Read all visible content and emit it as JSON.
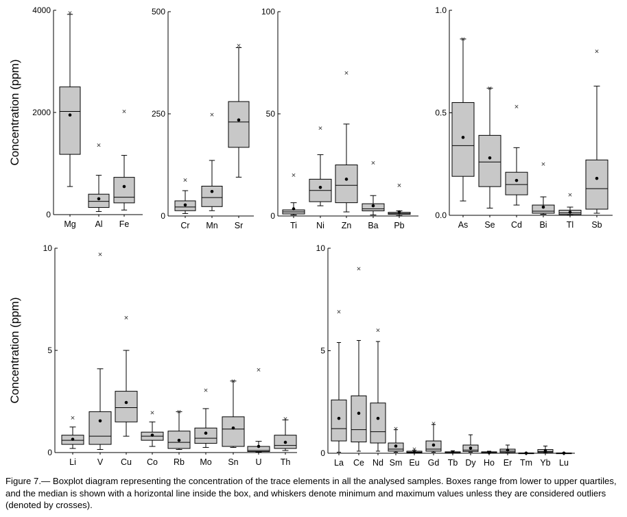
{
  "caption": "Figure 7.— Boxplot diagram representing the concentration of the trace elements in all the analysed samples. Boxes range from lower to upper quartiles, and the median is shown with a horizontal line inside the box, and whiskers denote minimum and maximum values unless they are considered outliers (denoted by crosses).",
  "box_fill": "#c8c8c8",
  "chart_data": [
    {
      "type": "boxplot",
      "ylabel": "Concentration (ppm)",
      "ylim": [
        0,
        4000
      ],
      "yticks": [
        0,
        2000,
        4000
      ],
      "boxes": [
        {
          "label": "Mg",
          "min": 550,
          "q1": 1180,
          "median": 2020,
          "q3": 2500,
          "max": 3920,
          "mean": 1950,
          "outliers": [
            3950
          ]
        },
        {
          "label": "Al",
          "min": 60,
          "q1": 140,
          "median": 260,
          "q3": 400,
          "max": 770,
          "mean": 310,
          "outliers": [
            1360
          ]
        },
        {
          "label": "Fe",
          "min": 90,
          "q1": 230,
          "median": 340,
          "q3": 730,
          "max": 1160,
          "mean": 550,
          "outliers": [
            2020
          ]
        }
      ]
    },
    {
      "type": "boxplot",
      "ylabel": "",
      "ylim": [
        0,
        500
      ],
      "yticks": [
        0,
        250,
        500
      ],
      "boxes": [
        {
          "label": "Cr",
          "min": 6,
          "q1": 13,
          "median": 22,
          "q3": 37,
          "max": 62,
          "mean": 27,
          "outliers": [
            88
          ]
        },
        {
          "label": "Mn",
          "min": 13,
          "q1": 23,
          "median": 45,
          "q3": 73,
          "max": 136,
          "mean": 60,
          "outliers": [
            248
          ]
        },
        {
          "label": "Sr",
          "min": 95,
          "q1": 168,
          "median": 230,
          "q3": 280,
          "max": 412,
          "mean": 235,
          "outliers": [
            417
          ]
        }
      ]
    },
    {
      "type": "boxplot",
      "ylabel": "",
      "ylim": [
        0,
        100
      ],
      "yticks": [
        0,
        50,
        100
      ],
      "boxes": [
        {
          "label": "Ti",
          "min": 0.5,
          "q1": 1,
          "median": 2,
          "q3": 3,
          "max": 6.5,
          "mean": 3.5,
          "outliers": [
            20
          ]
        },
        {
          "label": "Ni",
          "min": 5,
          "q1": 7,
          "median": 12.5,
          "q3": 18,
          "max": 30,
          "mean": 14,
          "outliers": [
            43
          ]
        },
        {
          "label": "Zn",
          "min": 2,
          "q1": 6.5,
          "median": 15,
          "q3": 25,
          "max": 45,
          "mean": 18,
          "outliers": [
            70
          ]
        },
        {
          "label": "Ba",
          "min": 0.5,
          "q1": 2.5,
          "median": 3.5,
          "q3": 6,
          "max": 10,
          "mean": 5,
          "outliers": [
            26
          ]
        },
        {
          "label": "Pb",
          "min": 0.2,
          "q1": 0.8,
          "median": 1.2,
          "q3": 1.8,
          "max": 2.5,
          "mean": 2,
          "outliers": [
            15
          ]
        }
      ]
    },
    {
      "type": "boxplot",
      "ylabel": "",
      "ylim": [
        0,
        1.0
      ],
      "yticks": [
        0.0,
        0.5,
        1.0
      ],
      "boxes": [
        {
          "label": "As",
          "min": 0.07,
          "q1": 0.19,
          "median": 0.34,
          "q3": 0.55,
          "max": 0.86,
          "mean": 0.38,
          "outliers": [
            0.86
          ]
        },
        {
          "label": "Se",
          "min": 0.035,
          "q1": 0.14,
          "median": 0.26,
          "q3": 0.39,
          "max": 0.62,
          "mean": 0.28,
          "outliers": [
            0.62
          ]
        },
        {
          "label": "Cd",
          "min": 0.05,
          "q1": 0.1,
          "median": 0.15,
          "q3": 0.21,
          "max": 0.33,
          "mean": 0.17,
          "outliers": [
            0.53
          ]
        },
        {
          "label": "Bi",
          "min": 0.005,
          "q1": 0.01,
          "median": 0.02,
          "q3": 0.05,
          "max": 0.09,
          "mean": 0.04,
          "outliers": [
            0.25
          ]
        },
        {
          "label": "Tl",
          "min": 0.002,
          "q1": 0.004,
          "median": 0.012,
          "q3": 0.025,
          "max": 0.04,
          "mean": 0.015,
          "outliers": [
            0.1
          ]
        },
        {
          "label": "Sb",
          "min": 0.01,
          "q1": 0.03,
          "median": 0.13,
          "q3": 0.27,
          "max": 0.63,
          "mean": 0.18,
          "outliers": [
            0.8
          ]
        }
      ]
    },
    {
      "type": "boxplot",
      "ylabel": "Concentration (ppm)",
      "ylim": [
        0,
        10
      ],
      "yticks": [
        0,
        5,
        10
      ],
      "boxes": [
        {
          "label": "Li",
          "min": 0.2,
          "q1": 0.4,
          "median": 0.6,
          "q3": 0.85,
          "max": 1.25,
          "mean": 0.65,
          "outliers": [
            1.7
          ]
        },
        {
          "label": "V",
          "min": 0.15,
          "q1": 0.4,
          "median": 0.8,
          "q3": 2.0,
          "max": 4.1,
          "mean": 1.55,
          "outliers": [
            9.7
          ]
        },
        {
          "label": "Cu",
          "min": 0.8,
          "q1": 1.5,
          "median": 2.2,
          "q3": 3.0,
          "max": 5.0,
          "mean": 2.45,
          "outliers": [
            6.6
          ]
        },
        {
          "label": "Co",
          "min": 0.3,
          "q1": 0.6,
          "median": 0.8,
          "q3": 1.0,
          "max": 1.5,
          "mean": 0.85,
          "outliers": [
            1.95
          ]
        },
        {
          "label": "Rb",
          "min": 0.15,
          "q1": 0.2,
          "median": 0.5,
          "q3": 1.05,
          "max": 2.0,
          "mean": 0.6,
          "outliers": [
            2.0
          ]
        },
        {
          "label": "Mo",
          "min": 0.25,
          "q1": 0.45,
          "median": 0.7,
          "q3": 1.2,
          "max": 2.15,
          "mean": 0.95,
          "outliers": [
            3.05
          ]
        },
        {
          "label": "Sn",
          "min": 0.25,
          "q1": 0.3,
          "median": 1.15,
          "q3": 1.75,
          "max": 3.5,
          "mean": 1.2,
          "outliers": [
            3.5
          ]
        },
        {
          "label": "U",
          "min": 0.02,
          "q1": 0.05,
          "median": 0.1,
          "q3": 0.3,
          "max": 0.55,
          "mean": 0.3,
          "outliers": [
            4.05
          ]
        },
        {
          "label": "Th",
          "min": 0.1,
          "q1": 0.2,
          "median": 0.35,
          "q3": 0.85,
          "max": 1.6,
          "mean": 0.5,
          "outliers": [
            1.65
          ]
        }
      ]
    },
    {
      "type": "boxplot",
      "ylabel": "",
      "ylim": [
        0,
        10
      ],
      "yticks": [
        0,
        5,
        10
      ],
      "boxes": [
        {
          "label": "La",
          "min": 0.05,
          "q1": 0.6,
          "median": 1.2,
          "q3": 2.6,
          "max": 5.4,
          "mean": 1.7,
          "outliers": [
            6.9
          ]
        },
        {
          "label": "Ce",
          "min": 0.1,
          "q1": 0.55,
          "median": 1.15,
          "q3": 2.8,
          "max": 5.5,
          "mean": 1.95,
          "outliers": [
            9.0
          ]
        },
        {
          "label": "Nd",
          "min": 0.1,
          "q1": 0.5,
          "median": 1.05,
          "q3": 2.45,
          "max": 5.45,
          "mean": 1.7,
          "outliers": [
            6.0
          ]
        },
        {
          "label": "Sm",
          "min": 0.05,
          "q1": 0.1,
          "median": 0.2,
          "q3": 0.5,
          "max": 1.15,
          "mean": 0.35,
          "outliers": [
            1.2
          ]
        },
        {
          "label": "Eu",
          "min": 0.01,
          "q1": 0.02,
          "median": 0.05,
          "q3": 0.1,
          "max": 0.15,
          "mean": 0.05,
          "outliers": [
            0.2
          ]
        },
        {
          "label": "Gd",
          "min": 0.05,
          "q1": 0.1,
          "median": 0.2,
          "q3": 0.6,
          "max": 1.4,
          "mean": 0.4,
          "outliers": [
            1.45
          ]
        },
        {
          "label": "Tb",
          "min": 0.005,
          "q1": 0.01,
          "median": 0.03,
          "q3": 0.07,
          "max": 0.12,
          "mean": 0.05,
          "outliers": []
        },
        {
          "label": "Dy",
          "min": 0.05,
          "q1": 0.08,
          "median": 0.15,
          "q3": 0.4,
          "max": 0.9,
          "mean": 0.25,
          "outliers": []
        },
        {
          "label": "Ho",
          "min": 0.005,
          "q1": 0.01,
          "median": 0.03,
          "q3": 0.07,
          "max": 0.1,
          "mean": 0.03,
          "outliers": []
        },
        {
          "label": "Er",
          "min": 0.02,
          "q1": 0.04,
          "median": 0.1,
          "q3": 0.2,
          "max": 0.4,
          "mean": 0.15,
          "outliers": []
        },
        {
          "label": "Tm",
          "min": 0.002,
          "q1": 0.004,
          "median": 0.008,
          "q3": 0.012,
          "max": 0.02,
          "mean": 0.005,
          "outliers": []
        },
        {
          "label": "Yb",
          "min": 0.02,
          "q1": 0.04,
          "median": 0.08,
          "q3": 0.18,
          "max": 0.35,
          "mean": 0.12,
          "outliers": []
        },
        {
          "label": "Lu",
          "min": 0.002,
          "q1": 0.004,
          "median": 0.006,
          "q3": 0.012,
          "max": 0.02,
          "mean": 0.005,
          "outliers": []
        }
      ]
    }
  ]
}
